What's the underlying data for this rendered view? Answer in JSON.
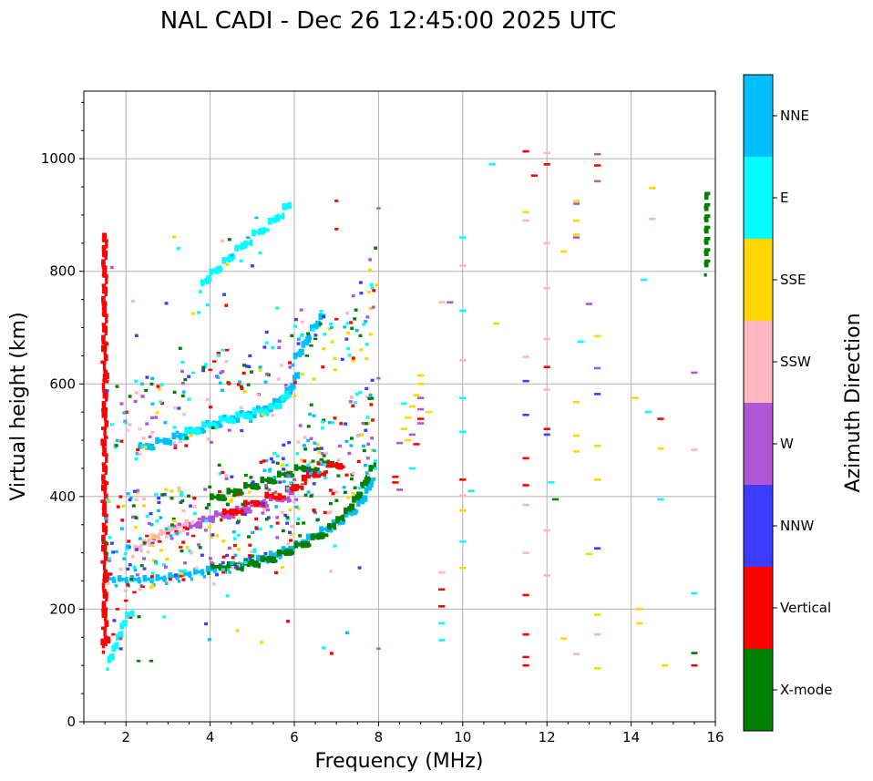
{
  "chart_data": {
    "type": "scatter",
    "title": "NAL CADI - Dec 26 12:45:00 2025 UTC",
    "xlabel": "Frequency (MHz)",
    "ylabel": "Virtual height (km)",
    "xlim": [
      1,
      16
    ],
    "ylim": [
      0,
      1120
    ],
    "xticks": [
      2,
      4,
      6,
      8,
      10,
      12,
      14,
      16
    ],
    "yticks": [
      0,
      200,
      400,
      600,
      800,
      1000
    ],
    "grid": true,
    "colorbar": {
      "label": "Azimuth Direction",
      "categories": [
        "X-mode",
        "Vertical",
        "NNW",
        "W",
        "SSW",
        "SSE",
        "E",
        "NNE"
      ],
      "colors": [
        "#008000",
        "#ff0000",
        "#3c3cff",
        "#b057d6",
        "#ffb6c1",
        "#ffd700",
        "#00ffff",
        "#00bfff"
      ]
    },
    "traces": [
      {
        "category": "NNE",
        "points": [
          [
            1.5,
            250
          ],
          [
            1.8,
            248
          ],
          [
            2.1,
            248
          ],
          [
            2.4,
            248
          ],
          [
            2.7,
            249
          ],
          [
            3.0,
            252
          ],
          [
            3.3,
            256
          ],
          [
            3.6,
            260
          ],
          [
            3.9,
            264
          ],
          [
            4.2,
            268
          ],
          [
            4.5,
            272
          ],
          [
            4.8,
            278
          ],
          [
            5.1,
            283
          ],
          [
            5.4,
            290
          ],
          [
            5.7,
            298
          ],
          [
            6.0,
            308
          ],
          [
            6.3,
            320
          ],
          [
            6.6,
            333
          ],
          [
            6.9,
            345
          ],
          [
            7.2,
            360
          ],
          [
            7.5,
            378
          ],
          [
            7.7,
            400
          ],
          [
            7.9,
            440
          ]
        ]
      },
      {
        "category": "X-mode",
        "points": [
          [
            4.0,
            270
          ],
          [
            4.4,
            272
          ],
          [
            4.8,
            276
          ],
          [
            5.2,
            282
          ],
          [
            5.6,
            292
          ],
          [
            6.0,
            306
          ],
          [
            6.4,
            320
          ],
          [
            6.8,
            338
          ],
          [
            7.0,
            350
          ],
          [
            7.2,
            365
          ],
          [
            7.4,
            385
          ],
          [
            7.6,
            410
          ],
          [
            7.8,
            440
          ],
          [
            7.9,
            455
          ]
        ]
      },
      {
        "category": "NNE",
        "points": [
          [
            2.3,
            483
          ],
          [
            2.7,
            492
          ],
          [
            3.1,
            500
          ],
          [
            3.5,
            510
          ],
          [
            3.9,
            522
          ],
          [
            4.3,
            532
          ],
          [
            4.7,
            540
          ],
          [
            5.1,
            548
          ],
          [
            5.5,
            560
          ],
          [
            5.8,
            578
          ],
          [
            6.0,
            600
          ],
          [
            6.1,
            620
          ]
        ]
      },
      {
        "category": "E",
        "points": [
          [
            3.4,
            510
          ],
          [
            3.8,
            520
          ],
          [
            4.2,
            530
          ],
          [
            4.6,
            538
          ],
          [
            5.0,
            545
          ],
          [
            5.4,
            552
          ],
          [
            5.7,
            565
          ],
          [
            5.9,
            585
          ]
        ]
      },
      {
        "category": "NNE",
        "points": [
          [
            6.0,
            640
          ],
          [
            6.2,
            660
          ],
          [
            6.4,
            690
          ],
          [
            6.6,
            710
          ],
          [
            6.7,
            720
          ]
        ]
      },
      {
        "category": "X-mode",
        "points": [
          [
            6.3,
            650
          ],
          [
            6.4,
            668
          ],
          [
            6.5,
            680
          ]
        ]
      },
      {
        "category": "E",
        "points": [
          [
            3.6,
            620
          ],
          [
            3.9,
            635
          ],
          [
            4.2,
            650
          ],
          [
            4.3,
            660
          ]
        ]
      },
      {
        "category": "Vertical",
        "points": [
          [
            4.0,
            625
          ],
          [
            4.1,
            640
          ],
          [
            4.2,
            655
          ],
          [
            4.4,
            660
          ]
        ]
      },
      {
        "category": "Vertical",
        "points": [
          [
            1.5,
            850
          ],
          [
            1.5,
            862
          ],
          [
            1.5,
            800
          ],
          [
            1.5,
            740
          ],
          [
            1.5,
            730
          ],
          [
            1.5,
            495
          ],
          [
            1.5,
            482
          ],
          [
            1.5,
            385
          ],
          [
            1.5,
            375
          ],
          [
            1.5,
            140
          ],
          [
            1.5,
            130
          ],
          [
            1.6,
            150
          ]
        ]
      },
      {
        "category": "E",
        "points": [
          [
            3.8,
            770
          ],
          [
            4.0,
            790
          ],
          [
            4.3,
            810
          ],
          [
            4.6,
            832
          ],
          [
            5.0,
            860
          ],
          [
            5.4,
            880
          ],
          [
            5.9,
            918
          ]
        ]
      },
      {
        "category": "NNE",
        "points": [
          [
            5.1,
            895
          ],
          [
            4.9,
            860
          ]
        ]
      },
      {
        "category": "SSW",
        "points": [
          [
            2.2,
            300
          ],
          [
            2.4,
            310
          ],
          [
            2.6,
            320
          ],
          [
            2.8,
            328
          ],
          [
            3.0,
            335
          ],
          [
            3.2,
            340
          ],
          [
            3.4,
            346
          ],
          [
            3.6,
            350
          ]
        ]
      },
      {
        "category": "Vertical",
        "points": [
          [
            2.8,
            320
          ],
          [
            3.0,
            335
          ],
          [
            3.2,
            338
          ],
          [
            3.4,
            345
          ],
          [
            3.6,
            330
          ],
          [
            3.3,
            310
          ],
          [
            2.5,
            330
          ]
        ]
      },
      {
        "category": "W",
        "points": [
          [
            3.5,
            340
          ],
          [
            3.8,
            352
          ],
          [
            4.1,
            362
          ],
          [
            4.6,
            370
          ],
          [
            5.0,
            380
          ],
          [
            5.4,
            390
          ],
          [
            6.0,
            405
          ]
        ]
      },
      {
        "category": "X-mode",
        "points": [
          [
            4.0,
            392
          ],
          [
            4.4,
            402
          ],
          [
            4.8,
            412
          ],
          [
            5.2,
            422
          ],
          [
            5.6,
            432
          ],
          [
            6.0,
            444
          ],
          [
            6.6,
            455
          ],
          [
            7.0,
            458
          ]
        ]
      },
      {
        "category": "Vertical",
        "points": [
          [
            4.3,
            365
          ],
          [
            4.8,
            380
          ],
          [
            5.3,
            395
          ],
          [
            5.8,
            405
          ],
          [
            6.3,
            430
          ],
          [
            6.8,
            450
          ],
          [
            7.2,
            455
          ]
        ]
      },
      {
        "category": "Vertical",
        "points": [
          [
            1.8,
            200
          ],
          [
            2.0,
            215
          ],
          [
            2.2,
            230
          ],
          [
            2.4,
            240
          ],
          [
            2.1,
            185
          ],
          [
            1.9,
            170
          ],
          [
            1.7,
            155
          ]
        ]
      },
      {
        "category": "E",
        "points": [
          [
            1.6,
            100
          ],
          [
            1.7,
            120
          ],
          [
            1.8,
            140
          ],
          [
            1.9,
            160
          ],
          [
            2.0,
            180
          ],
          [
            2.2,
            195
          ]
        ]
      },
      {
        "category": "X-mode",
        "points": [
          [
            2.3,
            108
          ],
          [
            2.6,
            108
          ]
        ]
      },
      {
        "category": "X-mode",
        "points": [
          [
            15.8,
            800
          ],
          [
            15.8,
            820
          ],
          [
            15.8,
            840
          ],
          [
            15.8,
            860
          ],
          [
            15.8,
            880
          ],
          [
            15.8,
            900
          ],
          [
            15.8,
            920
          ],
          [
            15.8,
            940
          ]
        ]
      },
      {
        "category": "SSE",
        "points": [
          [
            8.6,
            520
          ],
          [
            8.7,
            540
          ],
          [
            8.8,
            560
          ],
          [
            8.9,
            580
          ],
          [
            9.0,
            600
          ],
          [
            9.0,
            615
          ],
          [
            8.7,
            500
          ]
        ]
      },
      {
        "category": "W",
        "points": [
          [
            8.5,
            495
          ],
          [
            8.8,
            510
          ],
          [
            9.0,
            530
          ],
          [
            9.0,
            555
          ],
          [
            9.0,
            575
          ],
          [
            8.5,
            412
          ]
        ]
      },
      {
        "category": "Vertical",
        "points": [
          [
            8.4,
            425
          ],
          [
            8.4,
            435
          ],
          [
            8.9,
            493
          ],
          [
            9.0,
            538
          ]
        ]
      },
      {
        "category": "E",
        "points": [
          [
            8.6,
            565
          ],
          [
            8.8,
            450
          ],
          [
            9.5,
            175
          ],
          [
            9.5,
            145
          ],
          [
            10.0,
            730
          ],
          [
            10.0,
            575
          ],
          [
            10.0,
            515
          ],
          [
            10.0,
            320
          ],
          [
            10.2,
            410
          ],
          [
            10.7,
            990
          ],
          [
            12.1,
            425
          ],
          [
            12.8,
            675
          ],
          [
            14.3,
            785
          ],
          [
            14.4,
            550
          ],
          [
            14.7,
            395
          ],
          [
            15.5,
            228
          ],
          [
            10.0,
            860
          ]
        ]
      },
      {
        "category": "SSW",
        "points": [
          [
            9.5,
            745
          ],
          [
            9.5,
            265
          ],
          [
            10.0,
            810
          ],
          [
            10.0,
            642
          ],
          [
            10.0,
            402
          ],
          [
            11.5,
            1013
          ],
          [
            11.5,
            890
          ],
          [
            11.5,
            648
          ],
          [
            11.5,
            385
          ],
          [
            11.5,
            300
          ],
          [
            12.0,
            1010
          ],
          [
            12.0,
            770
          ],
          [
            12.0,
            590
          ],
          [
            12.0,
            340
          ],
          [
            12.0,
            260
          ],
          [
            12.7,
            120
          ],
          [
            13.2,
            155
          ],
          [
            14.5,
            893
          ],
          [
            15.5,
            483
          ],
          [
            12.0,
            850
          ],
          [
            12.0,
            680
          ]
        ]
      },
      {
        "category": "SSE",
        "points": [
          [
            9.2,
            550
          ],
          [
            10.0,
            375
          ],
          [
            10.0,
            273
          ],
          [
            10.8,
            707
          ],
          [
            11.5,
            905
          ],
          [
            12.4,
            835
          ],
          [
            12.4,
            148
          ],
          [
            12.7,
            925
          ],
          [
            12.7,
            890
          ],
          [
            12.7,
            865
          ],
          [
            12.7,
            568
          ],
          [
            12.7,
            508
          ],
          [
            12.7,
            480
          ],
          [
            13.0,
            298
          ],
          [
            13.2,
            490
          ],
          [
            13.2,
            430
          ],
          [
            13.2,
            685
          ],
          [
            13.2,
            95
          ],
          [
            14.1,
            575
          ],
          [
            14.2,
            200
          ],
          [
            14.2,
            175
          ],
          [
            14.5,
            948
          ],
          [
            14.7,
            485
          ],
          [
            14.8,
            100
          ],
          [
            13.2,
            190
          ]
        ]
      },
      {
        "category": "W",
        "points": [
          [
            8.0,
            912
          ],
          [
            8.0,
            610
          ],
          [
            8.0,
            130
          ],
          [
            13.2,
            1008
          ],
          [
            13.2,
            960
          ],
          [
            13.0,
            742
          ],
          [
            13.2,
            628
          ],
          [
            12.7,
            860
          ],
          [
            12.7,
            920
          ],
          [
            15.5,
            620
          ],
          [
            9.7,
            745
          ]
        ]
      },
      {
        "category": "NNW",
        "points": [
          [
            11.5,
            605
          ],
          [
            11.5,
            545
          ],
          [
            13.2,
            582
          ],
          [
            13.2,
            308
          ],
          [
            12.0,
            510
          ]
        ]
      },
      {
        "category": "Vertical",
        "points": [
          [
            7.0,
            925
          ],
          [
            7.0,
            875
          ],
          [
            7.0,
            715
          ],
          [
            9.5,
            235
          ],
          [
            9.5,
            205
          ],
          [
            10.0,
            430
          ],
          [
            11.5,
            1013
          ],
          [
            11.7,
            970
          ],
          [
            11.5,
            420
          ],
          [
            11.5,
            225
          ],
          [
            11.5,
            155
          ],
          [
            11.5,
            115
          ],
          [
            11.5,
            100
          ],
          [
            12.0,
            990
          ],
          [
            12.0,
            630
          ],
          [
            12.0,
            520
          ],
          [
            13.2,
            988
          ],
          [
            14.7,
            538
          ],
          [
            15.5,
            100
          ],
          [
            11.5,
            468
          ]
        ]
      },
      {
        "category": "X-mode",
        "points": [
          [
            12.2,
            395
          ],
          [
            15.5,
            122
          ]
        ]
      }
    ],
    "noise_extent": {
      "fmin": 1.5,
      "fmax": 8.0,
      "hmin": 90,
      "hmax": 930
    }
  }
}
